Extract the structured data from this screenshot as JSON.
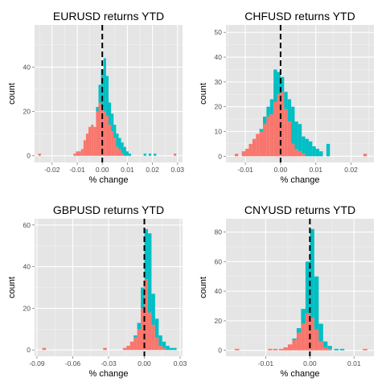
{
  "colors": {
    "panel_bg": "#e5e5e5",
    "grid_major": "#ffffff",
    "grid_minor": "#f2f2f2",
    "series_a": "#f8766d",
    "series_b": "#00bfc4",
    "zero_line": "#000000"
  },
  "chart_data": [
    {
      "type": "bar",
      "title": "EURUSD returns YTD",
      "xlabel": "% change",
      "ylabel": "count",
      "xlim": [
        -0.027,
        0.032
      ],
      "ylim": [
        -3,
        59
      ],
      "x_ticks": [
        -0.02,
        -0.01,
        0.0,
        0.01,
        0.02,
        0.03
      ],
      "x_tick_labels": [
        "-0.02",
        "-0.01",
        "0.00",
        "0.01",
        "0.02",
        "0.03"
      ],
      "y_ticks": [
        0,
        20,
        40
      ],
      "y_tick_labels": [
        "0",
        "20",
        "40"
      ],
      "bins": [
        -0.011,
        -0.01,
        -0.009,
        -0.008,
        -0.007,
        -0.006,
        -0.005,
        -0.004,
        -0.003,
        -0.002,
        -0.001,
        0.0,
        0.001,
        0.002,
        0.003,
        0.004,
        0.005,
        0.006,
        0.007,
        0.008,
        0.009,
        0.01,
        0.011
      ],
      "bin_width": 0.001,
      "series": [
        {
          "values": [
            1,
            2,
            2,
            3,
            7,
            10,
            13,
            14,
            13,
            20,
            24,
            22,
            20,
            18,
            14,
            11,
            8,
            4,
            3,
            1,
            0,
            0,
            0
          ]
        },
        {
          "values": [
            0,
            0,
            0,
            0,
            0,
            0,
            0,
            0,
            0,
            2,
            8,
            17,
            24,
            18,
            10,
            8,
            6,
            6,
            5,
            5,
            4,
            2,
            1
          ]
        }
      ],
      "outliers": [
        {
          "x": -0.025,
          "values": [
            1,
            0
          ]
        },
        {
          "x": 0.017,
          "values": [
            0,
            1
          ]
        },
        {
          "x": 0.019,
          "values": [
            0,
            1
          ]
        },
        {
          "x": 0.021,
          "values": [
            0,
            1
          ]
        },
        {
          "x": 0.029,
          "values": [
            1,
            0
          ]
        }
      ],
      "vline_x": 0
    },
    {
      "type": "bar",
      "title": "CHFUSD returns YTD",
      "xlabel": "% change",
      "ylabel": "count",
      "xlim": [
        -0.0155,
        0.0265
      ],
      "ylim": [
        -2.5,
        53
      ],
      "x_ticks": [
        -0.01,
        0.0,
        0.01,
        0.02
      ],
      "x_tick_labels": [
        "-0.01",
        "0.00",
        "0.01",
        "0.02"
      ],
      "y_ticks": [
        0,
        10,
        20,
        30,
        40,
        50
      ],
      "y_tick_labels": [
        "0",
        "10",
        "20",
        "30",
        "40",
        "50"
      ],
      "bins": [
        -0.0105,
        -0.0095,
        -0.0085,
        -0.0075,
        -0.0065,
        -0.0055,
        -0.0045,
        -0.0035,
        -0.0025,
        -0.0015,
        -0.0005,
        0.0005,
        0.0015,
        0.0025,
        0.0035,
        0.0045,
        0.0055,
        0.0065,
        0.0075,
        0.0085,
        0.0095,
        0.0105,
        0.0115,
        0.0125,
        0.0135,
        0.0145
      ],
      "bin_width": 0.001,
      "series": [
        {
          "values": [
            2,
            3,
            5,
            7,
            9,
            10,
            13,
            16,
            17,
            22,
            25,
            26,
            19,
            14,
            5,
            3,
            2,
            1,
            0,
            0,
            0,
            0,
            0,
            0,
            0,
            0
          ]
        },
        {
          "values": [
            0,
            0,
            0,
            0,
            0,
            1,
            3,
            4,
            6,
            13,
            9,
            6,
            7,
            9,
            15,
            11,
            11,
            7,
            7,
            6,
            4,
            3,
            2,
            0,
            5,
            0
          ]
        }
      ],
      "outliers": [
        {
          "x": -0.0125,
          "values": [
            1,
            0
          ]
        },
        {
          "x": 0.024,
          "values": [
            1,
            0
          ]
        }
      ],
      "vline_x": 0
    },
    {
      "type": "bar",
      "title": "GBPUSD returns YTD",
      "xlabel": "% change",
      "ylabel": "count",
      "xlim": [
        -0.092,
        0.032
      ],
      "ylim": [
        -3,
        63
      ],
      "x_ticks": [
        -0.09,
        -0.06,
        -0.03,
        0.0,
        0.03
      ],
      "x_tick_labels": [
        "-0.09",
        "-0.06",
        "-0.03",
        "0.00",
        "0.03"
      ],
      "y_ticks": [
        0,
        20,
        40,
        60
      ],
      "y_tick_labels": [
        "0",
        "20",
        "40",
        "60"
      ],
      "bins": [
        -0.0285,
        -0.0255,
        -0.0225,
        -0.0195,
        -0.0165,
        -0.0135,
        -0.0105,
        -0.0075,
        -0.0045,
        -0.0015,
        0.0015,
        0.0045,
        0.0075,
        0.0105,
        0.0135,
        0.0165,
        0.0195,
        0.0225
      ],
      "bin_width": 0.003,
      "series": [
        {
          "values": [
            0,
            0,
            0,
            0,
            1,
            2,
            4,
            6,
            10,
            20,
            34,
            18,
            12,
            6,
            2,
            1,
            0,
            0
          ]
        },
        {
          "values": [
            0,
            0,
            0,
            0,
            0,
            0,
            0,
            1,
            3,
            10,
            24,
            38,
            15,
            9,
            5,
            3,
            2,
            1
          ]
        }
      ],
      "outliers": [
        {
          "x": -0.084,
          "values": [
            1,
            0
          ]
        },
        {
          "x": -0.033,
          "values": [
            1,
            0
          ]
        },
        {
          "x": 0.0255,
          "values": [
            0,
            1
          ]
        }
      ],
      "vline_x": 0
    },
    {
      "type": "bar",
      "title": "CNYUSD returns YTD",
      "xlabel": "% change",
      "ylabel": "count",
      "xlim": [
        -0.019,
        0.0145
      ],
      "ylim": [
        -4,
        89
      ],
      "x_ticks": [
        -0.01,
        0.0,
        0.01
      ],
      "x_tick_labels": [
        "-0.01",
        "0.00",
        "0.01"
      ],
      "y_ticks": [
        0,
        20,
        40,
        60,
        80
      ],
      "y_tick_labels": [
        "0",
        "20",
        "40",
        "60",
        "80"
      ],
      "bins": [
        -0.0065,
        -0.0055,
        -0.0045,
        -0.0035,
        -0.0025,
        -0.0015,
        -0.0005,
        0.0005,
        0.0015,
        0.0025,
        0.0035,
        0.0045
      ],
      "bin_width": 0.001,
      "series": [
        {
          "values": [
            1,
            2,
            4,
            7,
            12,
            18,
            25,
            22,
            14,
            6,
            2,
            1
          ]
        },
        {
          "values": [
            0,
            0,
            0,
            1,
            3,
            10,
            35,
            60,
            36,
            12,
            4,
            2
          ]
        }
      ],
      "outliers": [
        {
          "x": -0.0165,
          "values": [
            1,
            0
          ]
        },
        {
          "x": -0.009,
          "values": [
            1,
            0
          ]
        },
        {
          "x": -0.0078,
          "values": [
            1,
            0
          ]
        },
        {
          "x": 0.006,
          "values": [
            0,
            1
          ]
        },
        {
          "x": 0.0073,
          "values": [
            0,
            1
          ]
        },
        {
          "x": 0.0125,
          "values": [
            1,
            0
          ]
        }
      ],
      "vline_x": 0
    }
  ]
}
